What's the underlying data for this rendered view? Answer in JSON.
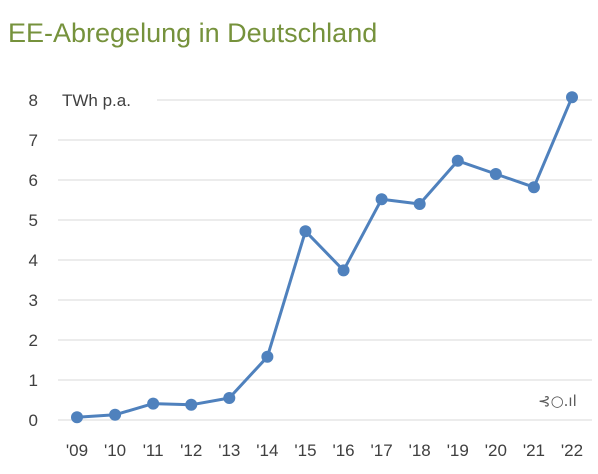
{
  "chart_data": {
    "type": "line",
    "title": "EE-Abregelung in Deutschland",
    "unit_label": "TWh p.a.",
    "categories": [
      "'09",
      "'10",
      "'11",
      "'12",
      "'13",
      "'14",
      "'15",
      "'16",
      "'17",
      "'18",
      "'19",
      "'20",
      "'21",
      "'22"
    ],
    "series": [
      {
        "values": [
          0.07,
          0.13,
          0.41,
          0.38,
          0.55,
          1.58,
          4.72,
          3.74,
          5.52,
          5.4,
          6.48,
          6.15,
          5.82,
          8.07
        ]
      }
    ],
    "yticks": [
      "0",
      "1",
      "2",
      "3",
      "4",
      "5",
      "6",
      "7",
      "8"
    ],
    "ylim": [
      0,
      8
    ],
    "grid": true,
    "colors": {
      "series": "#4f81bd",
      "title": "#76923c",
      "grid": "#d9d9d9"
    },
    "logo_text": "⊰○.ıl"
  }
}
